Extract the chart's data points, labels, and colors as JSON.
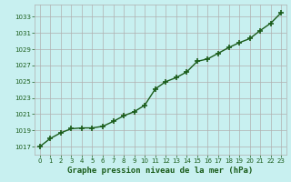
{
  "x": [
    0,
    1,
    2,
    3,
    4,
    5,
    6,
    7,
    8,
    9,
    10,
    11,
    12,
    13,
    14,
    15,
    16,
    17,
    18,
    19,
    20,
    21,
    22,
    23
  ],
  "y": [
    1017.0,
    1018.0,
    1018.7,
    1019.2,
    1019.3,
    1019.3,
    1019.5,
    1020.1,
    1020.8,
    1021.3,
    1022.1,
    1024.1,
    1025.0,
    1025.5,
    1026.2,
    1027.5,
    1027.8,
    1028.5,
    1029.2,
    1029.8,
    1030.3,
    1031.3,
    1032.2,
    1033.5
  ],
  "xlim": [
    -0.5,
    23.5
  ],
  "ylim": [
    1016.0,
    1034.5
  ],
  "yticks": [
    1017,
    1019,
    1021,
    1023,
    1025,
    1027,
    1029,
    1031,
    1033
  ],
  "xticks": [
    0,
    1,
    2,
    3,
    4,
    5,
    6,
    7,
    8,
    9,
    10,
    11,
    12,
    13,
    14,
    15,
    16,
    17,
    18,
    19,
    20,
    21,
    22,
    23
  ],
  "xlabel": "Graphe pression niveau de la mer (hPa)",
  "line_color": "#1a5c1a",
  "marker": "+",
  "marker_size": 4,
  "bg_color": "#c8f0f0",
  "grid_color": "#b0b0b0",
  "tick_label_color": "#1a5c1a",
  "xlabel_color": "#1a5c1a",
  "line_width": 1.0,
  "marker_edge_width": 1.2
}
